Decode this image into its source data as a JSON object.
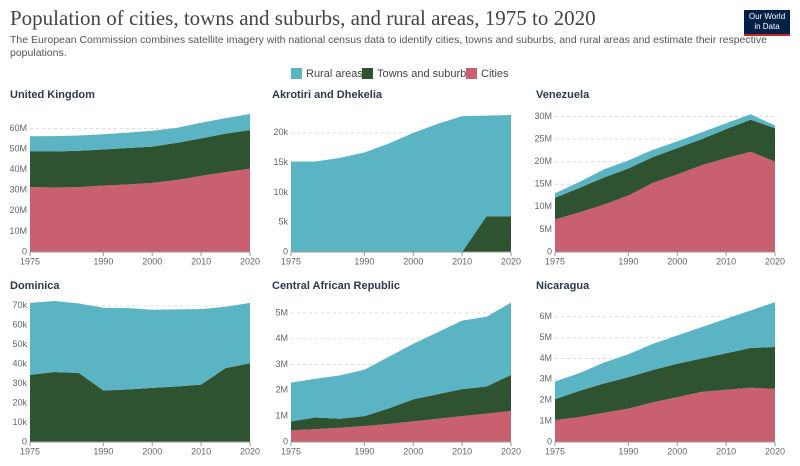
{
  "title": "Population of cities, towns and suburbs, and rural areas, 1975 to 2020",
  "subtitle": [
    "The European Commission combines satellite imagery with national census data to identify cities, towns and suburbs, and rural areas and estimate their respective",
    "populations."
  ],
  "logo": [
    "Our World",
    "in Data"
  ],
  "chart_data": [
    {
      "type": "area",
      "stacked": true,
      "title": "United Kingdom",
      "x": [
        1975,
        1980,
        1985,
        1990,
        1995,
        2000,
        2005,
        2010,
        2015,
        2020
      ],
      "xlim": [
        1975,
        2020
      ],
      "xticks": [
        1975,
        1990,
        2000,
        2010,
        2020
      ],
      "ylim": [
        0,
        68000000
      ],
      "yticks": [
        0,
        {
          "value": 10000000,
          "label": "10M"
        },
        {
          "value": 20000000,
          "label": "20M"
        },
        {
          "value": 30000000,
          "label": "30M"
        },
        {
          "value": 40000000,
          "label": "40M"
        },
        {
          "value": 50000000,
          "label": "50M"
        },
        {
          "value": 60000000,
          "label": "60M"
        }
      ],
      "grid": true,
      "series": [
        {
          "name": "Rural areas",
          "color": "#5bb4c4",
          "values": [
            7400000,
            7500000,
            7400000,
            7400000,
            7500000,
            7700000,
            7300000,
            7600000,
            7500000,
            7800000
          ]
        },
        {
          "name": "Towns and suburbs",
          "color": "#2f5230",
          "values": [
            17300000,
            17500000,
            17700000,
            17500000,
            17700000,
            17600000,
            18000000,
            18200000,
            18700000,
            18700000
          ]
        },
        {
          "name": "Cities",
          "color": "#c9606f",
          "values": [
            31500000,
            31300000,
            31500000,
            32300000,
            32800000,
            33600000,
            35000000,
            37000000,
            38800000,
            40500000
          ]
        }
      ]
    },
    {
      "type": "area",
      "stacked": true,
      "title": "Akrotiri and Dhekelia",
      "x": [
        1975,
        1980,
        1985,
        1990,
        1995,
        2000,
        2005,
        2010,
        2015,
        2020
      ],
      "xlim": [
        1975,
        2020
      ],
      "xticks": [
        1975,
        1990,
        2000,
        2010,
        2020
      ],
      "ylim": [
        0,
        23500
      ],
      "yticks": [
        0,
        {
          "value": 5000,
          "label": "5k"
        },
        {
          "value": 10000,
          "label": "10k"
        },
        {
          "value": 15000,
          "label": "15k"
        },
        {
          "value": 20000,
          "label": "20k"
        }
      ],
      "grid": true,
      "series": [
        {
          "name": "Rural areas",
          "color": "#5bb4c4",
          "values": [
            15200,
            15200,
            15800,
            16700,
            18200,
            20000,
            21500,
            22800,
            16900,
            17000
          ]
        },
        {
          "name": "Towns and suburbs",
          "color": "#2f5230",
          "values": [
            0,
            0,
            0,
            0,
            0,
            0,
            0,
            0,
            6000,
            6000
          ]
        },
        {
          "name": "Cities",
          "color": "#c9606f",
          "values": [
            0,
            0,
            0,
            0,
            0,
            0,
            0,
            0,
            0,
            0
          ]
        }
      ]
    },
    {
      "type": "area",
      "stacked": true,
      "title": "Venezuela",
      "x": [
        1975,
        1980,
        1985,
        1990,
        1995,
        2000,
        2005,
        2010,
        2015,
        2020
      ],
      "xlim": [
        1975,
        2020
      ],
      "xticks": [
        1975,
        1990,
        2000,
        2010,
        2020
      ],
      "ylim": [
        0,
        31000000
      ],
      "yticks": [
        0,
        {
          "value": 5000000,
          "label": "5M"
        },
        {
          "value": 10000000,
          "label": "10M"
        },
        {
          "value": 15000000,
          "label": "15M"
        },
        {
          "value": 20000000,
          "label": "20M"
        },
        {
          "value": 25000000,
          "label": "25M"
        },
        {
          "value": 30000000,
          "label": "30M"
        }
      ],
      "grid": true,
      "series": [
        {
          "name": "Rural areas",
          "color": "#5bb4c4",
          "values": [
            1000000,
            1300000,
            1800000,
            1800000,
            1600000,
            1500000,
            1500000,
            1300000,
            1200000,
            600000
          ]
        },
        {
          "name": "Towns and suburbs",
          "color": "#2f5230",
          "values": [
            4800000,
            5400000,
            6000000,
            6000000,
            5700000,
            5800000,
            5800000,
            6400000,
            7100000,
            7400000
          ]
        },
        {
          "name": "Cities",
          "color": "#c9606f",
          "values": [
            7200000,
            8800000,
            10500000,
            12500000,
            15300000,
            17200000,
            19200000,
            20800000,
            22200000,
            20000000
          ]
        }
      ]
    },
    {
      "type": "area",
      "stacked": true,
      "title": "Dominica",
      "x": [
        1975,
        1980,
        1985,
        1990,
        1995,
        2000,
        2005,
        2010,
        2015,
        2020
      ],
      "xlim": [
        1975,
        2020
      ],
      "xticks": [
        1975,
        1990,
        2000,
        2010,
        2020
      ],
      "ylim": [
        0,
        73000
      ],
      "yticks": [
        0,
        {
          "value": 10000,
          "label": "10k"
        },
        {
          "value": 20000,
          "label": "20k"
        },
        {
          "value": 30000,
          "label": "30k"
        },
        {
          "value": 40000,
          "label": "40k"
        },
        {
          "value": 50000,
          "label": "50k"
        },
        {
          "value": 60000,
          "label": "60k"
        },
        {
          "value": 70000,
          "label": "70k"
        }
      ],
      "grid": true,
      "series": [
        {
          "name": "Rural areas",
          "color": "#5bb4c4",
          "values": [
            37000,
            36500,
            35700,
            42500,
            41800,
            40200,
            39700,
            38800,
            31500,
            31000
          ]
        },
        {
          "name": "Towns and suburbs",
          "color": "#2f5230",
          "values": [
            34500,
            36000,
            35500,
            26500,
            27000,
            27800,
            28500,
            29500,
            38000,
            40500
          ]
        },
        {
          "name": "Cities",
          "color": "#c9606f",
          "values": [
            0,
            0,
            0,
            0,
            0,
            0,
            0,
            0,
            0,
            0
          ]
        }
      ]
    },
    {
      "type": "area",
      "stacked": true,
      "title": "Central African Republic",
      "x": [
        1975,
        1980,
        1985,
        1990,
        1995,
        2000,
        2005,
        2010,
        2015,
        2020
      ],
      "xlim": [
        1975,
        2020
      ],
      "xticks": [
        1975,
        1990,
        2000,
        2010,
        2020
      ],
      "ylim": [
        0,
        5500000
      ],
      "yticks": [
        0,
        {
          "value": 1000000,
          "label": "1M"
        },
        {
          "value": 2000000,
          "label": "2M"
        },
        {
          "value": 3000000,
          "label": "3M"
        },
        {
          "value": 4000000,
          "label": "4M"
        },
        {
          "value": 5000000,
          "label": "5M"
        }
      ],
      "grid": true,
      "series": [
        {
          "name": "Rural areas",
          "color": "#5bb4c4",
          "values": [
            1500000,
            1500000,
            1680000,
            1800000,
            2000000,
            2150000,
            2400000,
            2650000,
            2700000,
            2800000
          ]
        },
        {
          "name": "Towns and suburbs",
          "color": "#2f5230",
          "values": [
            350000,
            450000,
            350000,
            380000,
            600000,
            850000,
            950000,
            1050000,
            1050000,
            1400000
          ]
        },
        {
          "name": "Cities",
          "color": "#c9606f",
          "values": [
            450000,
            500000,
            550000,
            620000,
            700000,
            800000,
            900000,
            1000000,
            1100000,
            1200000
          ]
        }
      ]
    },
    {
      "type": "area",
      "stacked": true,
      "title": "Nicaragua",
      "x": [
        1975,
        1980,
        1985,
        1990,
        1995,
        2000,
        2005,
        2010,
        2015,
        2020
      ],
      "xlim": [
        1975,
        2020
      ],
      "xticks": [
        1975,
        1990,
        2000,
        2010,
        2020
      ],
      "ylim": [
        0,
        6800000
      ],
      "yticks": [
        0,
        {
          "value": 1000000,
          "label": "1M"
        },
        {
          "value": 2000000,
          "label": "2M"
        },
        {
          "value": 3000000,
          "label": "3M"
        },
        {
          "value": 4000000,
          "label": "4M"
        },
        {
          "value": 5000000,
          "label": "5M"
        },
        {
          "value": 6000000,
          "label": "6M"
        }
      ],
      "grid": true,
      "series": [
        {
          "name": "Rural areas",
          "color": "#5bb4c4",
          "values": [
            850000,
            850000,
            1000000,
            1100000,
            1250000,
            1350000,
            1500000,
            1650000,
            1800000,
            2150000
          ]
        },
        {
          "name": "Towns and suburbs",
          "color": "#2f5230",
          "values": [
            1000000,
            1250000,
            1400000,
            1500000,
            1550000,
            1600000,
            1600000,
            1750000,
            1900000,
            2000000
          ]
        },
        {
          "name": "Cities",
          "color": "#c9606f",
          "values": [
            1050000,
            1200000,
            1400000,
            1600000,
            1900000,
            2150000,
            2400000,
            2500000,
            2600000,
            2550000
          ]
        }
      ]
    }
  ]
}
